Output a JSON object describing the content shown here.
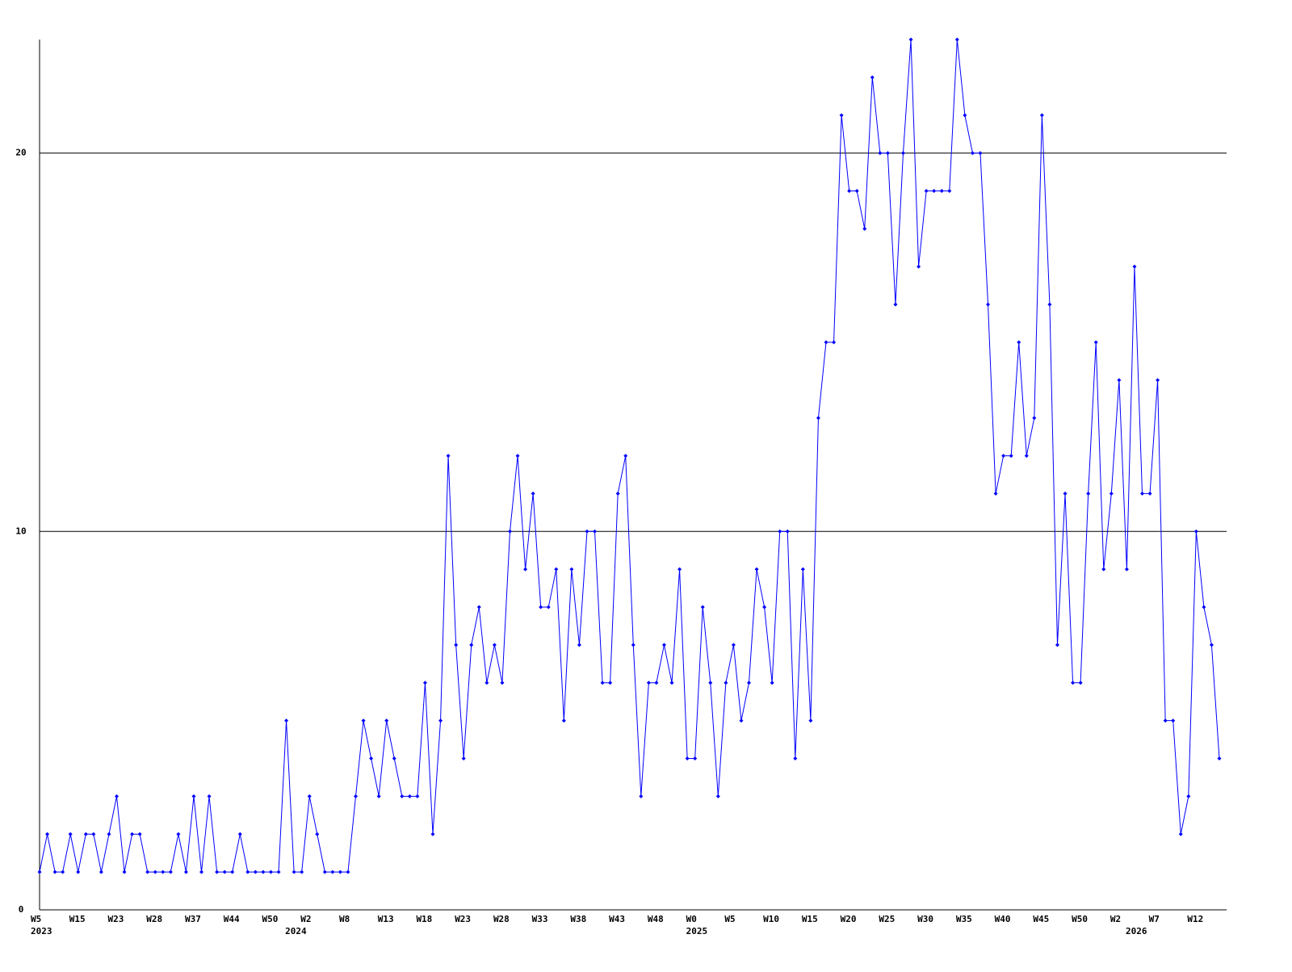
{
  "chart_data": {
    "type": "line",
    "categories": [
      "W5",
      null,
      null,
      null,
      null,
      "W15",
      null,
      null,
      null,
      null,
      "W23",
      null,
      null,
      null,
      null,
      "W28",
      null,
      null,
      null,
      null,
      "W37",
      null,
      null,
      null,
      null,
      "W44",
      null,
      null,
      null,
      null,
      "W50",
      null,
      null,
      null,
      null,
      "W2",
      null,
      null,
      null,
      null,
      "W8",
      null,
      null,
      null,
      null,
      "W13",
      null,
      null,
      null,
      null,
      "W18",
      null,
      null,
      null,
      null,
      "W23",
      null,
      null,
      null,
      null,
      "W28",
      null,
      null,
      null,
      null,
      "W33",
      null,
      null,
      null,
      null,
      "W38",
      null,
      null,
      null,
      null,
      "W43",
      null,
      null,
      null,
      null,
      "W48",
      null,
      null,
      null,
      null,
      "W0",
      null,
      null,
      null,
      null,
      "W5",
      null,
      null,
      null,
      null,
      "W10",
      null,
      null,
      null,
      null,
      "W15",
      null,
      null,
      null,
      null,
      "W20",
      null,
      null,
      null,
      null,
      "W25",
      null,
      null,
      null,
      null,
      "W30",
      null,
      null,
      null,
      null,
      "W35",
      null,
      null,
      null,
      null,
      "W40",
      null,
      null,
      null,
      null,
      "W45",
      null,
      null,
      null,
      null,
      "W50",
      null,
      null,
      null,
      null,
      "W2",
      null,
      null,
      null,
      null,
      "W7",
      null,
      null,
      null,
      null,
      "W12",
      null,
      null,
      null
    ],
    "year_labels": [
      "2023",
      null,
      null,
      null,
      null,
      null,
      null,
      null,
      null,
      null,
      null,
      null,
      null,
      null,
      null,
      null,
      null,
      null,
      null,
      null,
      null,
      null,
      null,
      null,
      null,
      null,
      null,
      null,
      null,
      null,
      null,
      null,
      null,
      "2024",
      null,
      null,
      null,
      null,
      null,
      null,
      null,
      null,
      null,
      null,
      null,
      null,
      null,
      null,
      null,
      null,
      null,
      null,
      null,
      null,
      null,
      null,
      null,
      null,
      null,
      null,
      null,
      null,
      null,
      null,
      null,
      null,
      null,
      null,
      null,
      null,
      null,
      null,
      null,
      null,
      null,
      null,
      null,
      null,
      null,
      null,
      null,
      null,
      null,
      null,
      null,
      "2025",
      null,
      null,
      null,
      null,
      null,
      null,
      null,
      null,
      null,
      null,
      null,
      null,
      null,
      null,
      null,
      null,
      null,
      null,
      null,
      null,
      null,
      null,
      null,
      null,
      null,
      null,
      null,
      null,
      null,
      null,
      null,
      null,
      null,
      null,
      null,
      null,
      null,
      null,
      null,
      null,
      null,
      null,
      null,
      null,
      null,
      null,
      null,
      null,
      null,
      null,
      null,
      null,
      null,
      null,
      null,
      null,
      "2026",
      null,
      null,
      null,
      null,
      null,
      null,
      null,
      null,
      null,
      null,
      null,
      null,
      null,
      null,
      null
    ],
    "series": [
      {
        "color": "#0000ff",
        "values": [
          1,
          2,
          1,
          1,
          2,
          1,
          2,
          2,
          1,
          2,
          3,
          1,
          2,
          2,
          1,
          1,
          1,
          1,
          2,
          1,
          3,
          1,
          3,
          1,
          1,
          1,
          2,
          1,
          1,
          1,
          1,
          1,
          5,
          1,
          1,
          3,
          2,
          1,
          1,
          1,
          1,
          3,
          5,
          4,
          3,
          5,
          4,
          3,
          3,
          3,
          6,
          2,
          5,
          12,
          7,
          4,
          7,
          8,
          6,
          7,
          6,
          10,
          12,
          9,
          11,
          8,
          8,
          9,
          5,
          9,
          7,
          10,
          10,
          6,
          6,
          11,
          12,
          7,
          3,
          6,
          6,
          7,
          6,
          9,
          4,
          4,
          8,
          6,
          3,
          6,
          7,
          5,
          6,
          9,
          8,
          6,
          10,
          10,
          4,
          9,
          5,
          13,
          15,
          15,
          21,
          19,
          19,
          18,
          22,
          20,
          20,
          16,
          20,
          23,
          17,
          19,
          19,
          19,
          19,
          23,
          21,
          20,
          20,
          16,
          11,
          12,
          12,
          15,
          12,
          13,
          21,
          16,
          7,
          11,
          6,
          6,
          11,
          15,
          9,
          11,
          14,
          9,
          17,
          11,
          11,
          14,
          5,
          5,
          2,
          3,
          10,
          8,
          7,
          4
        ]
      }
    ],
    "ylim": [
      0,
      23
    ],
    "yticks": [
      0,
      10,
      20
    ],
    "grid": true
  }
}
